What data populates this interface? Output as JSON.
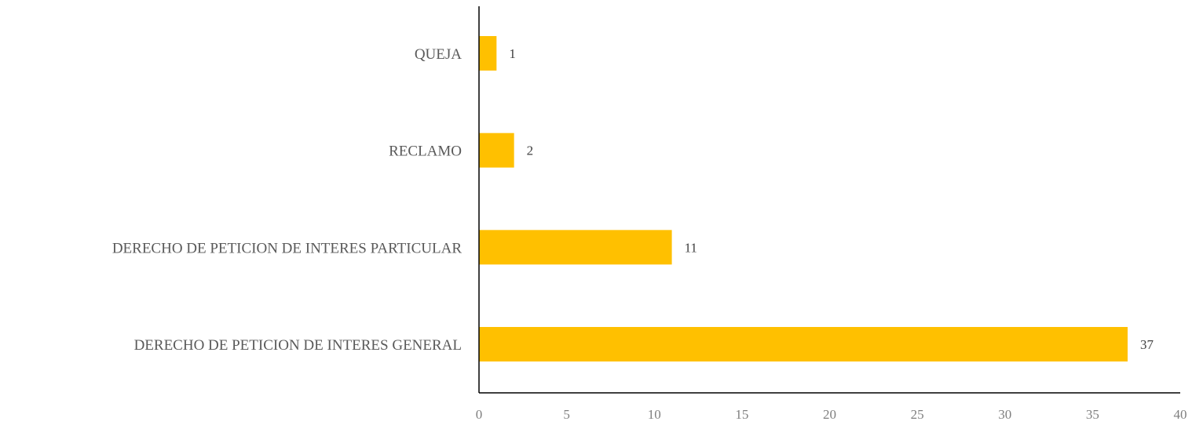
{
  "chart_data": {
    "type": "bar",
    "orientation": "horizontal",
    "title": "",
    "xlabel": "",
    "ylabel": "",
    "categories": [
      "QUEJA",
      "RECLAMO",
      "DERECHO DE PETICION DE INTERES PARTICULAR",
      "DERECHO DE PETICION DE INTERES GENERAL"
    ],
    "values": [
      1,
      2,
      11,
      37
    ],
    "xlim": [
      0,
      40
    ],
    "xticks": [
      0,
      5,
      10,
      15,
      20,
      25,
      30,
      35,
      40
    ],
    "grid": false,
    "legend": "none",
    "bar_color": "#FFC000",
    "axis_color": "#000000"
  }
}
